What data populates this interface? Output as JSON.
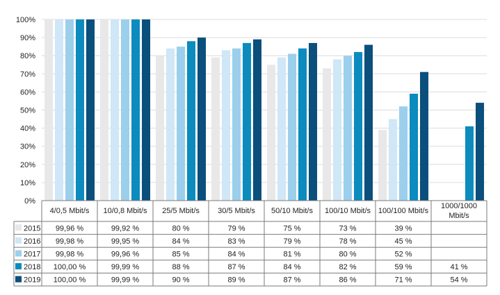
{
  "chart_data": {
    "type": "bar",
    "categories": [
      "4/0,5 Mbit/s",
      "10/0,8 Mbit/s",
      "25/5 Mbit/s",
      "30/5 Mbit/s",
      "50/10 Mbit/s",
      "100/10 Mbit/s",
      "100/100 Mbit/s",
      "1000/1000 Mbit/s"
    ],
    "category_lines": [
      [
        "4/0,5 Mbit/s"
      ],
      [
        "10/0,8 Mbit/s"
      ],
      [
        "25/5 Mbit/s"
      ],
      [
        "30/5 Mbit/s"
      ],
      [
        "50/10 Mbit/s"
      ],
      [
        "100/10 Mbit/s"
      ],
      [
        "100/100 Mbit/s"
      ],
      [
        "1000/1000",
        "Mbit/s"
      ]
    ],
    "y_ticks": [
      "0%",
      "10%",
      "20%",
      "30%",
      "40%",
      "50%",
      "60%",
      "70%",
      "80%",
      "90%",
      "100%"
    ],
    "ylim": [
      0,
      100
    ],
    "grid": true,
    "legend": "data-table",
    "series": [
      {
        "name": "2015",
        "color": "#e8e8e8",
        "values": [
          99.96,
          99.92,
          80,
          79,
          75,
          73,
          39,
          null
        ],
        "labels": [
          "99,96 %",
          "99,92 %",
          "80 %",
          "79 %",
          "75 %",
          "73 %",
          "39 %",
          ""
        ]
      },
      {
        "name": "2016",
        "color": "#cfe7f6",
        "values": [
          99.98,
          99.95,
          84,
          83,
          79,
          78,
          45,
          null
        ],
        "labels": [
          "99,98 %",
          "99,95 %",
          "84 %",
          "83 %",
          "79 %",
          "78 %",
          "45 %",
          ""
        ]
      },
      {
        "name": "2017",
        "color": "#9ccfeb",
        "values": [
          99.98,
          99.96,
          85,
          84,
          81,
          80,
          52,
          null
        ],
        "labels": [
          "99,98 %",
          "99,96 %",
          "85 %",
          "84 %",
          "81 %",
          "80 %",
          "52 %",
          ""
        ]
      },
      {
        "name": "2018",
        "color": "#0c8bbf",
        "values": [
          100.0,
          99.99,
          88,
          87,
          84,
          82,
          59,
          41
        ],
        "labels": [
          "100,00 %",
          "99,99 %",
          "88 %",
          "87 %",
          "84 %",
          "82 %",
          "59 %",
          "41 %"
        ]
      },
      {
        "name": "2019",
        "color": "#0b4f7c",
        "values": [
          100.0,
          99.99,
          90,
          89,
          87,
          86,
          71,
          54
        ],
        "labels": [
          "100,00 %",
          "99,99 %",
          "90 %",
          "89 %",
          "87 %",
          "86 %",
          "71 %",
          "54 %"
        ]
      }
    ]
  }
}
